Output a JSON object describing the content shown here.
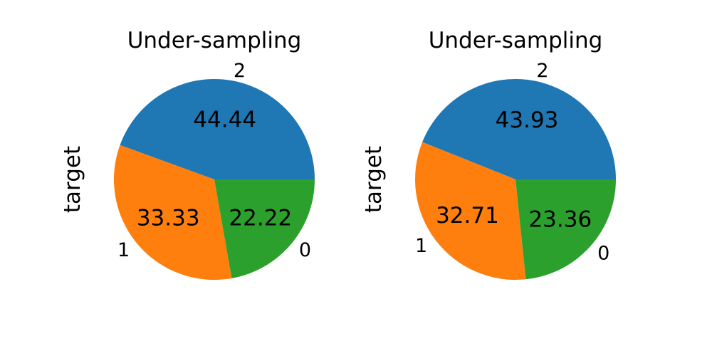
{
  "chart_data": [
    {
      "type": "pie",
      "title": "Under-sampling",
      "ylabel": "target",
      "categories": [
        "2",
        "1",
        "0"
      ],
      "values": [
        44.44,
        33.33,
        22.22
      ],
      "value_labels": [
        "44.44",
        "33.33",
        "22.22"
      ],
      "colors": [
        "#1f77b4",
        "#ff7f0e",
        "#2ca02c"
      ]
    },
    {
      "type": "pie",
      "title": "Under-sampling",
      "ylabel": "target",
      "categories": [
        "2",
        "1",
        "0"
      ],
      "values": [
        43.93,
        32.71,
        23.36
      ],
      "value_labels": [
        "43.93",
        "32.71",
        "23.36"
      ],
      "colors": [
        "#1f77b4",
        "#ff7f0e",
        "#2ca02c"
      ]
    }
  ]
}
